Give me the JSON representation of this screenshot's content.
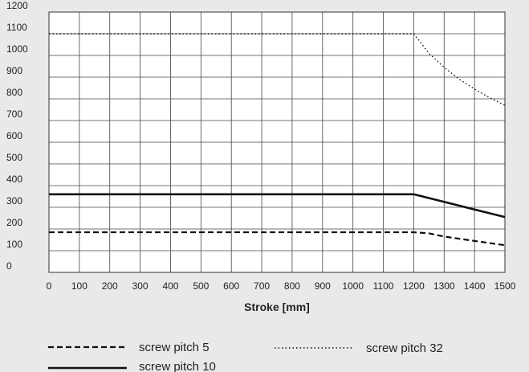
{
  "chart_data": {
    "type": "line",
    "title": "",
    "xlabel": "Stroke [mm]",
    "ylabel": "",
    "xlim": [
      0,
      1500
    ],
    "ylim": [
      0,
      1200
    ],
    "xticks": [
      0,
      100,
      200,
      300,
      400,
      500,
      600,
      700,
      800,
      900,
      1000,
      1100,
      1200,
      1300,
      1400,
      1500
    ],
    "yticks": [
      0,
      100,
      200,
      300,
      400,
      500,
      600,
      700,
      800,
      900,
      1000,
      1100,
      1200
    ],
    "grid": true,
    "legend_position": "bottom",
    "series": [
      {
        "name": "screw pitch 5",
        "style": "dashed",
        "color": "#111111",
        "x": [
          0,
          1200,
          1250,
          1300,
          1350,
          1400,
          1450,
          1500
        ],
        "y": [
          185,
          185,
          180,
          165,
          155,
          145,
          135,
          125
        ]
      },
      {
        "name": "screw pitch 10",
        "style": "solid",
        "color": "#111111",
        "x": [
          0,
          1200,
          1300,
          1400,
          1500
        ],
        "y": [
          360,
          360,
          325,
          290,
          255
        ]
      },
      {
        "name": "screw pitch 32",
        "style": "dotted",
        "color": "#111111",
        "x": [
          0,
          1200,
          1250,
          1300,
          1350,
          1400,
          1450,
          1500
        ],
        "y": [
          1100,
          1100,
          1010,
          945,
          890,
          845,
          805,
          770
        ]
      }
    ]
  }
}
